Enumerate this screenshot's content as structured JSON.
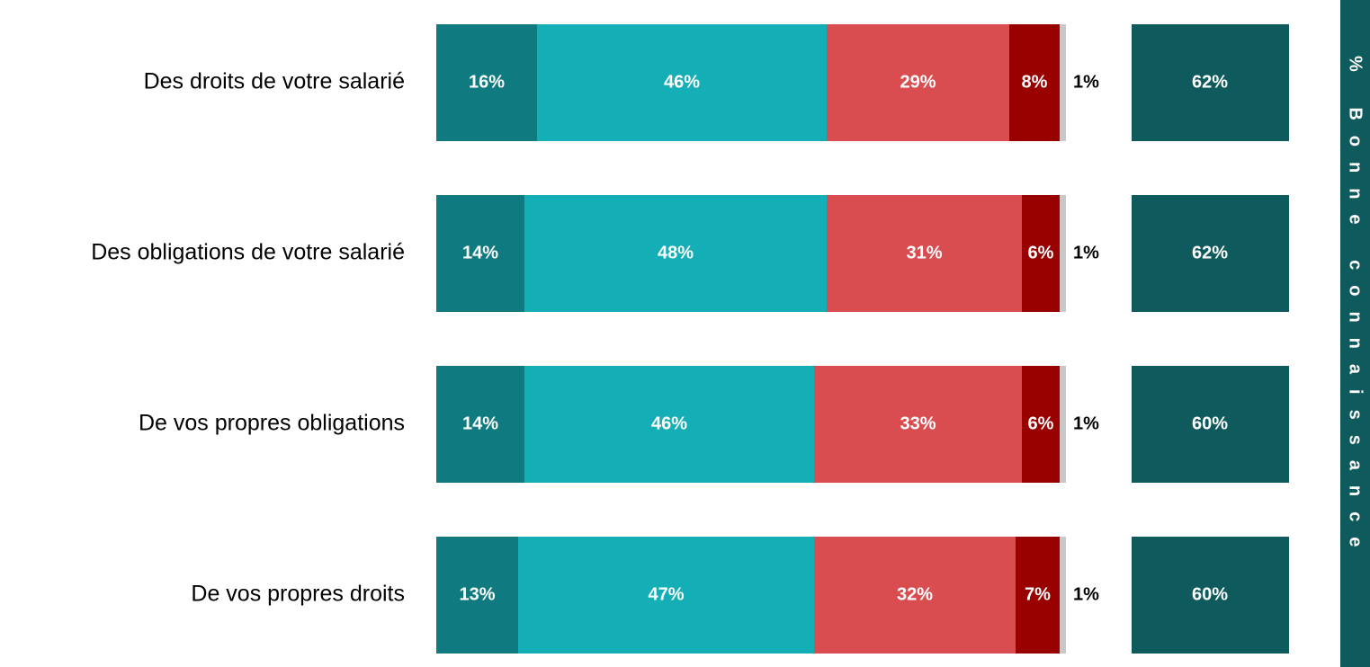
{
  "chart_data": {
    "type": "stacked-bar",
    "orientation": "horizontal",
    "categories": [
      "Des droits de votre salarié",
      "Des obligations de votre salarié",
      "De vos propres obligations",
      "De vos propres droits"
    ],
    "series": [
      {
        "color": "#0f7b80",
        "values": [
          16,
          14,
          14,
          13
        ],
        "value_labels": [
          "16%",
          "14%",
          "14%",
          "13%"
        ]
      },
      {
        "color": "#14aeb7",
        "values": [
          46,
          48,
          46,
          47
        ],
        "value_labels": [
          "46%",
          "48%",
          "46%",
          "47%"
        ]
      },
      {
        "color": "#d94d50",
        "values": [
          29,
          31,
          33,
          32
        ],
        "value_labels": [
          "29%",
          "31%",
          "33%",
          "32%"
        ]
      },
      {
        "color": "#990000",
        "values": [
          8,
          6,
          6,
          7
        ],
        "value_labels": [
          "8%",
          "6%",
          "6%",
          "7%"
        ]
      },
      {
        "color": "#c8c8c8",
        "values": [
          1,
          1,
          1,
          1
        ],
        "value_labels": [
          "1%",
          "1%",
          "1%",
          "1%"
        ]
      }
    ],
    "summary": {
      "title": "% Bonne connaissance",
      "color": "#0e5a5c",
      "values": [
        62,
        62,
        60,
        60
      ],
      "value_labels": [
        "62%",
        "62%",
        "60%",
        "60%"
      ]
    }
  }
}
